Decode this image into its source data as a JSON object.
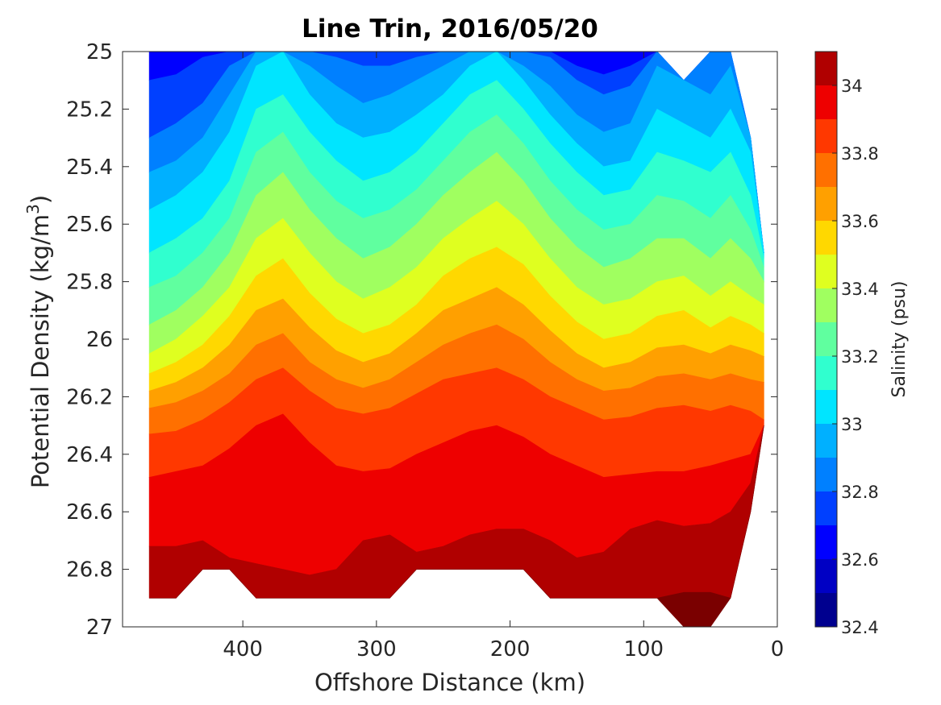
{
  "chart_data": {
    "type": "contour",
    "title": "Line Trin, 2016/05/20",
    "xlabel": "Offshore Distance (km)",
    "ylabel_main": "Potential Density (kg/m",
    "ylabel_sup": "3",
    "ylabel_close": ")",
    "xlim": [
      490,
      0
    ],
    "ylim": [
      25,
      27
    ],
    "x_ticks": [
      400,
      300,
      200,
      100,
      0
    ],
    "x_tick_labels": [
      "400",
      "300",
      "200",
      "100",
      "0"
    ],
    "y_ticks": [
      25,
      25.2,
      25.4,
      25.6,
      25.8,
      26,
      26.2,
      26.4,
      26.6,
      26.8,
      27
    ],
    "y_tick_labels": [
      "25",
      "25.2",
      "25.4",
      "25.6",
      "25.8",
      "26",
      "26.2",
      "26.4",
      "26.6",
      "26.8",
      "27"
    ],
    "colorbar": {
      "label": "Salinity (psu)",
      "range": [
        32.4,
        34.1
      ],
      "ticks": [
        32.4,
        32.6,
        32.8,
        33,
        33.2,
        33.4,
        33.6,
        33.8,
        34
      ],
      "tick_labels": [
        "32.4",
        "32.6",
        "32.8",
        "33",
        "33.2",
        "33.4",
        "33.6",
        "33.8",
        "34"
      ],
      "levels": [
        32.4,
        32.5,
        32.6,
        32.7,
        32.8,
        32.9,
        33.0,
        33.1,
        33.2,
        33.3,
        33.4,
        33.5,
        33.6,
        33.7,
        33.8,
        33.9,
        34.0,
        34.1
      ],
      "colors": [
        "#00008f",
        "#0000c4",
        "#0000ff",
        "#0040ff",
        "#0080ff",
        "#00b0ff",
        "#00e5ff",
        "#30ffcf",
        "#60ff9f",
        "#a0ff60",
        "#dfff20",
        "#ffd800",
        "#ffa000",
        "#ff7000",
        "#ff3800",
        "#ee0000",
        "#b00000"
      ]
    },
    "contour_levels": [
      32.7,
      32.8,
      32.9,
      33.0,
      33.1,
      33.2,
      33.3,
      33.4,
      33.5,
      33.6,
      33.7,
      33.8,
      33.9,
      34.0,
      34.1
    ],
    "band_colors": [
      "#0000ff",
      "#0040ff",
      "#0080ff",
      "#00b0ff",
      "#00e5ff",
      "#30ffcf",
      "#60ff9f",
      "#a0ff60",
      "#dfff20",
      "#ffd800",
      "#ffa000",
      "#ff7000",
      "#ff3800",
      "#ee0000",
      "#b00000",
      "#7a0000"
    ],
    "stations_km": [
      470,
      450,
      430,
      410,
      390,
      370,
      350,
      330,
      310,
      290,
      270,
      250,
      230,
      210,
      190,
      170,
      150,
      130,
      110,
      90,
      70,
      50,
      35,
      20,
      10
    ],
    "bottom_density": [
      26.9,
      26.9,
      26.8,
      26.8,
      26.9,
      26.9,
      26.9,
      26.9,
      26.9,
      26.9,
      26.8,
      26.8,
      26.8,
      26.8,
      26.8,
      26.9,
      26.9,
      26.9,
      26.9,
      26.9,
      27.0,
      27.0,
      26.9,
      26.6,
      26.3
    ],
    "top_density": [
      25,
      25,
      25,
      25,
      25,
      25,
      25,
      25,
      25,
      25,
      25,
      25,
      25,
      25,
      25,
      25,
      25,
      25,
      25,
      25,
      25.1,
      25,
      25,
      25.3,
      25.7
    ],
    "isopycnal_depth_of_level": {
      "comment_levels_psu": [
        32.7,
        32.8,
        32.9,
        33.0,
        33.1,
        33.2,
        33.3,
        33.4,
        33.5,
        33.6,
        33.7,
        33.8,
        33.9,
        34.0,
        34.1
      ],
      "rows": [
        [
          25.1,
          25.08,
          25.02,
          25.0,
          25.0,
          25.0,
          25.0,
          25.0,
          25.0,
          25.0,
          25.0,
          25.0,
          25.0,
          25.0,
          25.0,
          25.0,
          25.05,
          25.08,
          25.05,
          25.0,
          25.0,
          25.0,
          25.0,
          25.0,
          25.0
        ],
        [
          25.3,
          25.25,
          25.18,
          25.05,
          25.0,
          25.0,
          25.0,
          25.02,
          25.05,
          25.05,
          25.02,
          25.0,
          25.0,
          25.0,
          25.0,
          25.02,
          25.1,
          25.15,
          25.12,
          25.0,
          25.0,
          25.0,
          25.0,
          25.0,
          25.0
        ],
        [
          25.42,
          25.38,
          25.3,
          25.15,
          25.0,
          25.0,
          25.05,
          25.12,
          25.18,
          25.15,
          25.1,
          25.05,
          25.0,
          25.0,
          25.05,
          25.12,
          25.22,
          25.28,
          25.25,
          25.05,
          25.1,
          25.15,
          25.05,
          25.2,
          25.7
        ],
        [
          25.55,
          25.5,
          25.42,
          25.28,
          25.05,
          25.0,
          25.15,
          25.25,
          25.3,
          25.28,
          25.22,
          25.15,
          25.05,
          25.0,
          25.1,
          25.22,
          25.32,
          25.4,
          25.38,
          25.2,
          25.25,
          25.3,
          25.2,
          25.35,
          25.7
        ],
        [
          25.7,
          25.65,
          25.58,
          25.45,
          25.2,
          25.15,
          25.28,
          25.38,
          25.45,
          25.42,
          25.35,
          25.25,
          25.15,
          25.1,
          25.2,
          25.32,
          25.42,
          25.5,
          25.48,
          25.35,
          25.38,
          25.42,
          25.35,
          25.5,
          25.72
        ],
        [
          25.82,
          25.78,
          25.7,
          25.58,
          25.35,
          25.28,
          25.42,
          25.52,
          25.58,
          25.55,
          25.48,
          25.38,
          25.28,
          25.22,
          25.32,
          25.45,
          25.55,
          25.62,
          25.6,
          25.5,
          25.52,
          25.58,
          25.5,
          25.62,
          25.75
        ],
        [
          25.95,
          25.9,
          25.82,
          25.7,
          25.5,
          25.42,
          25.55,
          25.65,
          25.72,
          25.68,
          25.6,
          25.5,
          25.42,
          25.35,
          25.45,
          25.58,
          25.68,
          25.75,
          25.72,
          25.65,
          25.65,
          25.72,
          25.65,
          25.72,
          25.8
        ],
        [
          26.05,
          26.0,
          25.92,
          25.82,
          25.65,
          25.58,
          25.7,
          25.8,
          25.86,
          25.82,
          25.75,
          25.65,
          25.58,
          25.52,
          25.6,
          25.72,
          25.82,
          25.88,
          25.86,
          25.8,
          25.78,
          25.85,
          25.8,
          25.85,
          25.88
        ],
        [
          26.12,
          26.08,
          26.02,
          25.92,
          25.78,
          25.72,
          25.84,
          25.93,
          25.98,
          25.95,
          25.88,
          25.78,
          25.72,
          25.68,
          25.74,
          25.85,
          25.94,
          26.0,
          25.98,
          25.92,
          25.9,
          25.96,
          25.92,
          25.95,
          25.98
        ],
        [
          26.18,
          26.15,
          26.1,
          26.02,
          25.9,
          25.86,
          25.96,
          26.04,
          26.08,
          26.05,
          25.98,
          25.9,
          25.86,
          25.82,
          25.88,
          25.97,
          26.05,
          26.1,
          26.08,
          26.03,
          26.02,
          26.05,
          26.02,
          26.04,
          26.06
        ],
        [
          26.24,
          26.22,
          26.18,
          26.12,
          26.02,
          25.98,
          26.08,
          26.14,
          26.17,
          26.14,
          26.08,
          26.02,
          25.98,
          25.95,
          26.0,
          26.08,
          26.14,
          26.18,
          26.17,
          26.13,
          26.12,
          26.14,
          26.12,
          26.14,
          26.15
        ],
        [
          26.33,
          26.32,
          26.28,
          26.22,
          26.14,
          26.1,
          26.18,
          26.24,
          26.26,
          26.24,
          26.19,
          26.14,
          26.12,
          26.1,
          26.14,
          26.2,
          26.24,
          26.28,
          26.27,
          26.24,
          26.23,
          26.25,
          26.23,
          26.25,
          26.28
        ],
        [
          26.48,
          26.46,
          26.44,
          26.38,
          26.3,
          26.26,
          26.36,
          26.44,
          26.46,
          26.45,
          26.4,
          26.36,
          26.32,
          26.3,
          26.34,
          26.4,
          26.44,
          26.48,
          26.47,
          26.46,
          26.46,
          26.44,
          26.42,
          26.4,
          26.4
        ],
        [
          26.72,
          26.72,
          26.7,
          26.76,
          26.78,
          26.8,
          26.82,
          26.8,
          26.7,
          26.68,
          26.74,
          26.72,
          26.68,
          26.66,
          26.66,
          26.7,
          26.76,
          26.74,
          26.66,
          26.63,
          26.65,
          26.64,
          26.6,
          26.5,
          26.4
        ],
        [
          26.95,
          26.95,
          26.95,
          26.95,
          26.95,
          26.95,
          26.95,
          26.95,
          26.95,
          26.95,
          26.95,
          26.95,
          26.95,
          26.95,
          26.95,
          26.95,
          26.95,
          26.95,
          26.95,
          26.9,
          26.88,
          26.88,
          26.9,
          26.95,
          26.95
        ]
      ]
    }
  }
}
